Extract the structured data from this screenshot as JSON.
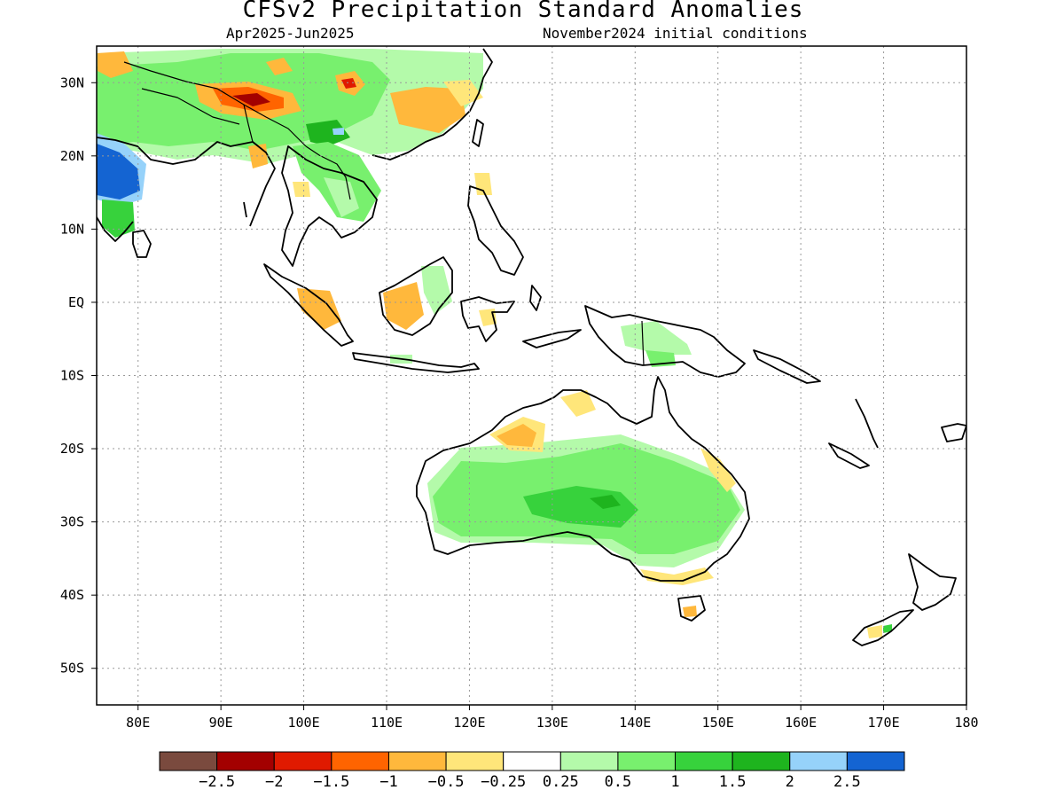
{
  "title": "CFSv2 Precipitation Standard Anomalies",
  "subtitle_left": "Apr2025-Jun2025",
  "subtitle_right": "November2024 initial conditions",
  "map": {
    "lon_range": [
      75,
      180
    ],
    "lat_range": [
      -55,
      35
    ],
    "lon_ticks": [
      {
        "value": 80,
        "label": "80E"
      },
      {
        "value": 90,
        "label": "90E"
      },
      {
        "value": 100,
        "label": "100E"
      },
      {
        "value": 110,
        "label": "110E"
      },
      {
        "value": 120,
        "label": "120E"
      },
      {
        "value": 130,
        "label": "130E"
      },
      {
        "value": 140,
        "label": "140E"
      },
      {
        "value": 150,
        "label": "150E"
      },
      {
        "value": 160,
        "label": "160E"
      },
      {
        "value": 170,
        "label": "170E"
      },
      {
        "value": 180,
        "label": "180"
      }
    ],
    "lat_ticks": [
      {
        "value": 30,
        "label": "30N"
      },
      {
        "value": 20,
        "label": "20N"
      },
      {
        "value": 10,
        "label": "10N"
      },
      {
        "value": 0,
        "label": "EQ"
      },
      {
        "value": -10,
        "label": "10S"
      },
      {
        "value": -20,
        "label": "20S"
      },
      {
        "value": -30,
        "label": "30S"
      },
      {
        "value": -40,
        "label": "40S"
      },
      {
        "value": -50,
        "label": "50S"
      }
    ],
    "grid": true
  },
  "colorbar": {
    "colors": [
      "#7a4a3e",
      "#a30000",
      "#e01a00",
      "#ff6400",
      "#ffb83c",
      "#ffe67a",
      "#ffffff",
      "#b4faaa",
      "#78f06e",
      "#37d23c",
      "#1eb41e",
      "#96d2fa",
      "#1464d2"
    ],
    "labels": [
      "-2.5",
      "-2",
      "-1.5",
      "-1",
      "-0.5",
      "-0.25",
      "0.25",
      "0.5",
      "1",
      "1.5",
      "2",
      "2.5"
    ]
  },
  "colors": {
    "light_green": "#b4faaa",
    "green": "#78f06e",
    "mid_green": "#37d23c",
    "dark_green": "#1eb41e",
    "light_blue": "#96d2fa",
    "blue": "#1464d2",
    "yellow": "#ffe67a",
    "orange": "#ffb83c",
    "dark_orange": "#ff6400",
    "red": "#e01a00",
    "dark_red": "#a30000"
  }
}
